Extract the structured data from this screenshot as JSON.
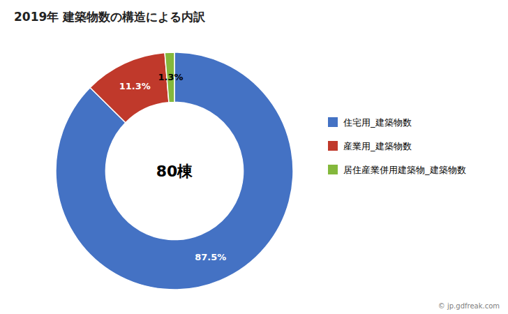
{
  "chart_data": {
    "type": "pie",
    "title": "2019年 建築物数の構造による内訳",
    "categories": [
      "住宅用_建築物数",
      "産業用_建築物数",
      "居住産業併用建築物_建築物数"
    ],
    "values": [
      87.5,
      11.3,
      1.3
    ],
    "value_labels": [
      "87.5%",
      "11.3%",
      "1.3%"
    ],
    "colors": [
      "#4472c4",
      "#c0392b",
      "#84b83c"
    ],
    "data_labels": true,
    "legend": "right",
    "annotations": [
      "80棟",
      "© jp.gdfreak.com"
    ]
  }
}
